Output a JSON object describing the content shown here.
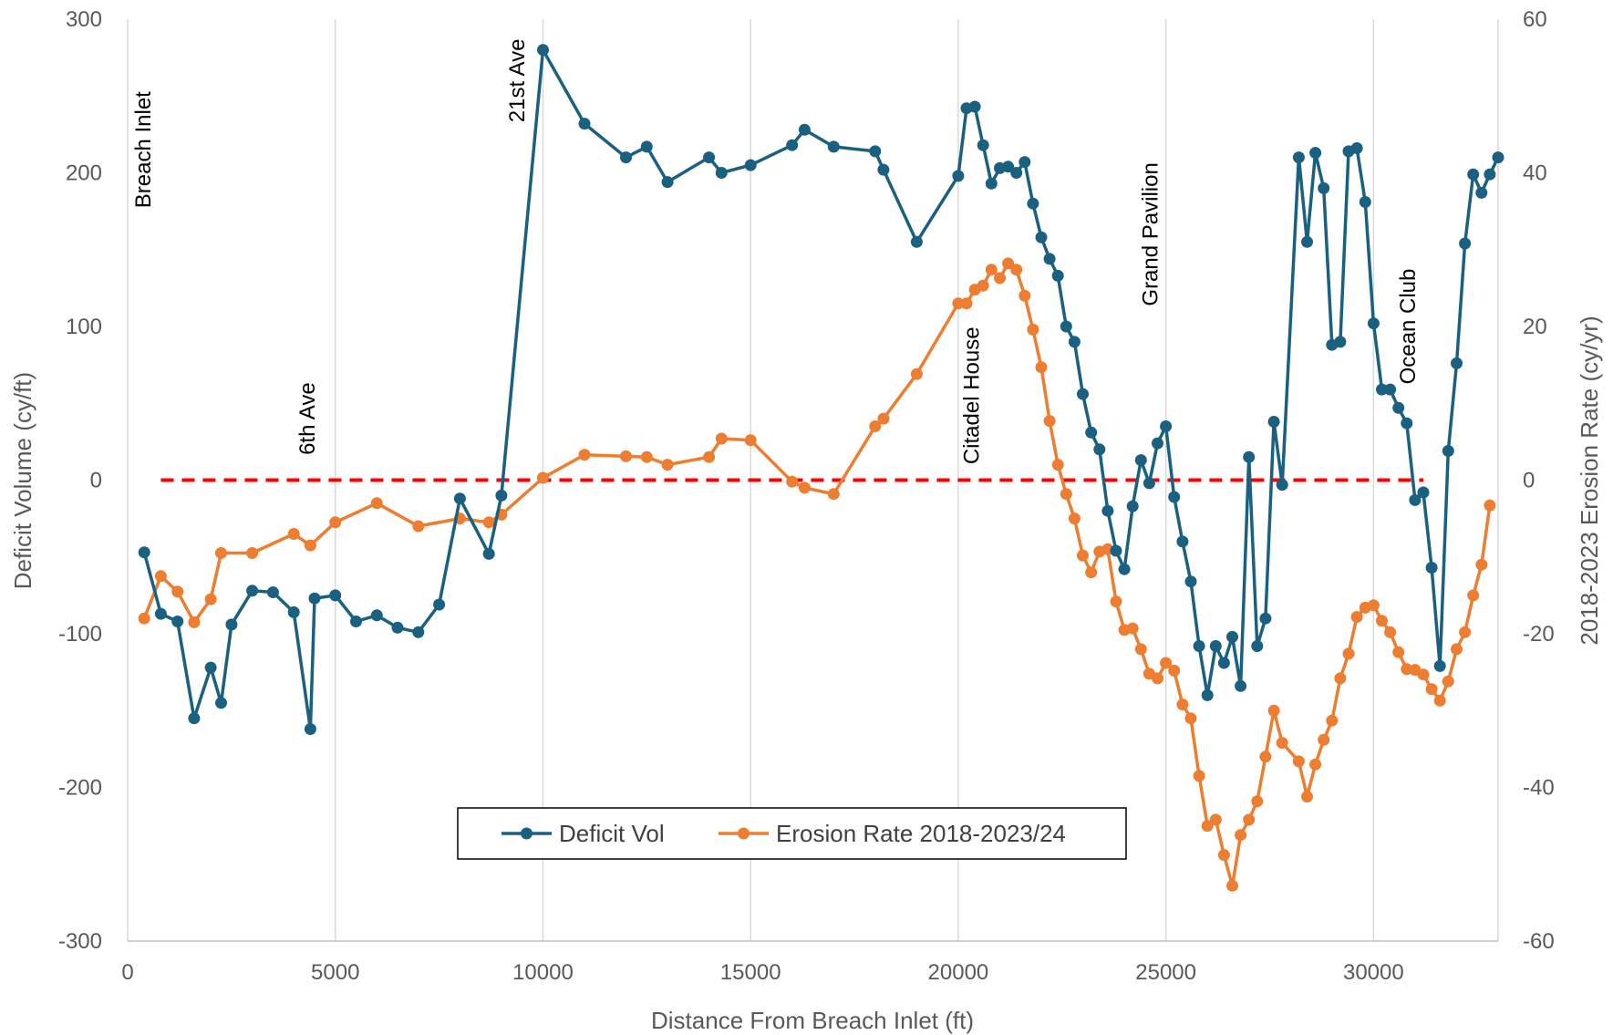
{
  "chart_data": {
    "type": "line",
    "xlabel": "Distance From Breach Inlet (ft)",
    "ylabel": "Deficit Volume (cy/ft)",
    "y2label": "2018-2023 Erosion Rate (cy/yr)",
    "xlim": [
      0,
      33000
    ],
    "ylim": [
      -300,
      300
    ],
    "y2lim": [
      -60,
      60
    ],
    "x_ticks": [
      0,
      5000,
      10000,
      15000,
      20000,
      25000,
      30000
    ],
    "y_ticks": [
      -300,
      -200,
      -100,
      0,
      100,
      200,
      300
    ],
    "y2_ticks": [
      -60,
      -40,
      -20,
      0,
      20,
      40,
      60
    ],
    "grid": "vertical",
    "legend": "bottom-center",
    "reference_line": {
      "axis": "y",
      "value": 0,
      "x_range": [
        800,
        31200
      ],
      "color": "#ff0000",
      "style": "dashed"
    },
    "annotations": [
      {
        "text": "Breach Inlet",
        "x": 550,
        "y": 215
      },
      {
        "text": "6th Ave",
        "x": 4500,
        "y": 40
      },
      {
        "text": "21st Ave",
        "x": 9550,
        "y": 260
      },
      {
        "text": "Citadel House",
        "x": 20500,
        "y": 55
      },
      {
        "text": "Grand Pavilion",
        "x": 24800,
        "y": 160
      },
      {
        "text": "Ocean Club",
        "x": 31000,
        "y": 100
      }
    ],
    "series": [
      {
        "name": "Deficit Vol",
        "axis": "left",
        "color": "#1a6080",
        "points": [
          [
            400,
            -47
          ],
          [
            800,
            -87
          ],
          [
            1200,
            -92
          ],
          [
            1600,
            -155
          ],
          [
            2000,
            -122
          ],
          [
            2250,
            -145
          ],
          [
            2500,
            -94
          ],
          [
            3000,
            -72
          ],
          [
            3500,
            -73
          ],
          [
            4000,
            -86
          ],
          [
            4400,
            -162
          ],
          [
            4500,
            -77
          ],
          [
            5000,
            -75
          ],
          [
            5500,
            -92
          ],
          [
            6000,
            -88
          ],
          [
            6500,
            -96
          ],
          [
            7000,
            -99
          ],
          [
            7500,
            -81
          ],
          [
            8000,
            -12
          ],
          [
            8700,
            -48
          ],
          [
            9000,
            -10
          ],
          [
            10000,
            280
          ],
          [
            11000,
            232
          ],
          [
            12000,
            210
          ],
          [
            12500,
            217
          ],
          [
            13000,
            194
          ],
          [
            14000,
            210
          ],
          [
            14300,
            200
          ],
          [
            15000,
            205
          ],
          [
            16000,
            218
          ],
          [
            16300,
            228
          ],
          [
            17000,
            217
          ],
          [
            18000,
            214
          ],
          [
            18200,
            202
          ],
          [
            19000,
            155
          ],
          [
            20000,
            198
          ],
          [
            20200,
            242
          ],
          [
            20400,
            243
          ],
          [
            20600,
            218
          ],
          [
            20800,
            193
          ],
          [
            21000,
            203
          ],
          [
            21200,
            204
          ],
          [
            21400,
            200
          ],
          [
            21600,
            207
          ],
          [
            21800,
            180
          ],
          [
            22000,
            158
          ],
          [
            22200,
            144
          ],
          [
            22400,
            133
          ],
          [
            22600,
            100
          ],
          [
            22800,
            90
          ],
          [
            23000,
            56
          ],
          [
            23200,
            31
          ],
          [
            23400,
            20
          ],
          [
            23600,
            -20
          ],
          [
            23800,
            -46
          ],
          [
            24000,
            -58
          ],
          [
            24200,
            -17
          ],
          [
            24400,
            13
          ],
          [
            24600,
            -2
          ],
          [
            24800,
            24
          ],
          [
            25000,
            35
          ],
          [
            25200,
            -11
          ],
          [
            25400,
            -40
          ],
          [
            25600,
            -66
          ],
          [
            25800,
            -108
          ],
          [
            26000,
            -140
          ],
          [
            26200,
            -108
          ],
          [
            26400,
            -119
          ],
          [
            26600,
            -102
          ],
          [
            26800,
            -134
          ],
          [
            27000,
            15
          ],
          [
            27200,
            -108
          ],
          [
            27400,
            -90
          ],
          [
            27600,
            38
          ],
          [
            27800,
            -3
          ],
          [
            28200,
            210
          ],
          [
            28400,
            155
          ],
          [
            28600,
            213
          ],
          [
            28800,
            190
          ],
          [
            29000,
            88
          ],
          [
            29200,
            90
          ],
          [
            29400,
            214
          ],
          [
            29600,
            216
          ],
          [
            29800,
            181
          ],
          [
            30000,
            102
          ],
          [
            30200,
            59
          ],
          [
            30400,
            59
          ],
          [
            30600,
            47
          ],
          [
            30800,
            37
          ],
          [
            31000,
            -13
          ],
          [
            31200,
            -8
          ],
          [
            31400,
            -57
          ],
          [
            31600,
            -121
          ],
          [
            31800,
            19
          ],
          [
            32000,
            76
          ],
          [
            32200,
            154
          ],
          [
            32400,
            199
          ],
          [
            32600,
            187
          ],
          [
            32800,
            199
          ],
          [
            33000,
            210
          ]
        ]
      },
      {
        "name": "Erosion Rate 2018-2023/24",
        "axis": "right",
        "color": "#ed7d31",
        "points": [
          [
            400,
            -18
          ],
          [
            800,
            -12.5
          ],
          [
            1200,
            -14.5
          ],
          [
            1600,
            -18.5
          ],
          [
            2000,
            -15.5
          ],
          [
            2250,
            -9.5
          ],
          [
            3000,
            -9.5
          ],
          [
            4000,
            -7
          ],
          [
            4400,
            -8.5
          ],
          [
            5000,
            -5.5
          ],
          [
            6000,
            -3
          ],
          [
            7000,
            -6
          ],
          [
            8000,
            -5
          ],
          [
            8700,
            -5.5
          ],
          [
            9000,
            -4.5
          ],
          [
            10000,
            0.3
          ],
          [
            11000,
            3.3
          ],
          [
            12000,
            3.1
          ],
          [
            12500,
            3
          ],
          [
            13000,
            2
          ],
          [
            14000,
            3
          ],
          [
            14300,
            5.4
          ],
          [
            15000,
            5.2
          ],
          [
            16000,
            -0.2
          ],
          [
            16300,
            -1
          ],
          [
            17000,
            -1.8
          ],
          [
            18000,
            7
          ],
          [
            18200,
            8
          ],
          [
            19000,
            13.8
          ],
          [
            20000,
            23
          ],
          [
            20200,
            23
          ],
          [
            20400,
            24.8
          ],
          [
            20600,
            25.3
          ],
          [
            20800,
            27.4
          ],
          [
            21000,
            26.3
          ],
          [
            21200,
            28.2
          ],
          [
            21400,
            27.4
          ],
          [
            21600,
            24
          ],
          [
            21800,
            19.6
          ],
          [
            22000,
            14.7
          ],
          [
            22200,
            7.7
          ],
          [
            22400,
            2
          ],
          [
            22600,
            -1.8
          ],
          [
            22800,
            -5
          ],
          [
            23000,
            -9.8
          ],
          [
            23200,
            -12
          ],
          [
            23400,
            -9.3
          ],
          [
            23600,
            -9
          ],
          [
            23800,
            -15.8
          ],
          [
            24000,
            -19.5
          ],
          [
            24200,
            -19.3
          ],
          [
            24400,
            -22
          ],
          [
            24600,
            -25.2
          ],
          [
            24800,
            -25.8
          ],
          [
            25000,
            -23.8
          ],
          [
            25200,
            -24.8
          ],
          [
            25400,
            -29.2
          ],
          [
            25600,
            -31
          ],
          [
            25800,
            -38.5
          ],
          [
            26000,
            -45
          ],
          [
            26200,
            -44.2
          ],
          [
            26400,
            -48.8
          ],
          [
            26600,
            -52.8
          ],
          [
            26800,
            -46.2
          ],
          [
            27000,
            -44.2
          ],
          [
            27200,
            -41.8
          ],
          [
            27400,
            -36
          ],
          [
            27600,
            -30
          ],
          [
            27800,
            -34.2
          ],
          [
            28200,
            -36.6
          ],
          [
            28400,
            -41.2
          ],
          [
            28600,
            -37
          ],
          [
            28800,
            -33.8
          ],
          [
            29000,
            -31.3
          ],
          [
            29200,
            -25.8
          ],
          [
            29400,
            -22.6
          ],
          [
            29600,
            -17.8
          ],
          [
            29800,
            -16.6
          ],
          [
            30000,
            -16.3
          ],
          [
            30200,
            -18.3
          ],
          [
            30400,
            -19.8
          ],
          [
            30600,
            -22.4
          ],
          [
            30800,
            -24.6
          ],
          [
            31000,
            -24.7
          ],
          [
            31200,
            -25.3
          ],
          [
            31400,
            -27.2
          ],
          [
            31600,
            -28.7
          ],
          [
            31800,
            -26.2
          ],
          [
            32000,
            -22
          ],
          [
            32200,
            -19.8
          ],
          [
            32400,
            -15
          ],
          [
            32600,
            -11
          ],
          [
            32800,
            -3.3
          ]
        ]
      }
    ]
  }
}
